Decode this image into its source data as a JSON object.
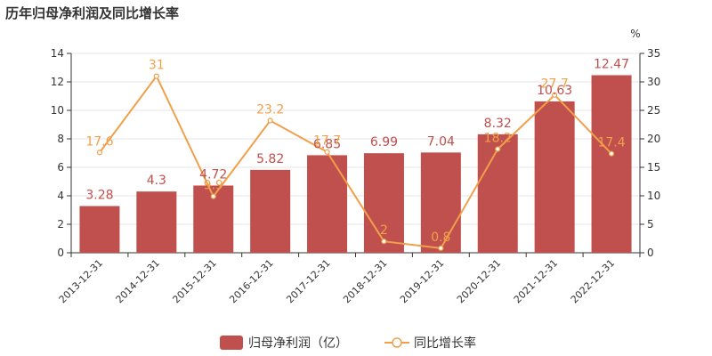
{
  "chart_data": {
    "title": "历年归母净利润及同比增长率",
    "categories": [
      "2013-12-31",
      "2014-12-31",
      "2015-12-31",
      "2016-12-31",
      "2017-12-31",
      "2018-12-31",
      "2019-12-31",
      "2020-12-31",
      "2021-12-31",
      "2022-12-31"
    ],
    "series": [
      {
        "name": "归母净利润（亿）",
        "type": "bar",
        "axis": "left",
        "color": "#c0504d",
        "values": [
          3.28,
          4.3,
          4.72,
          5.82,
          6.85,
          6.99,
          7.04,
          8.32,
          10.63,
          12.47
        ]
      },
      {
        "name": "同比增长率",
        "type": "line",
        "axis": "right",
        "color": "#f0a04b",
        "values": [
          17.6,
          31,
          9.9,
          23.2,
          17.7,
          2,
          0.8,
          18.2,
          27.7,
          17.4
        ]
      }
    ],
    "y_left": {
      "range": [
        0,
        14
      ],
      "ticks": [
        "0",
        "2",
        "4",
        "6",
        "8",
        "10",
        "12",
        "14"
      ]
    },
    "y_right": {
      "label": "%",
      "range": [
        0,
        35
      ],
      "ticks": [
        "0",
        "5",
        "10",
        "15",
        "20",
        "25",
        "30",
        "35"
      ]
    },
    "legend_position": "bottom"
  }
}
